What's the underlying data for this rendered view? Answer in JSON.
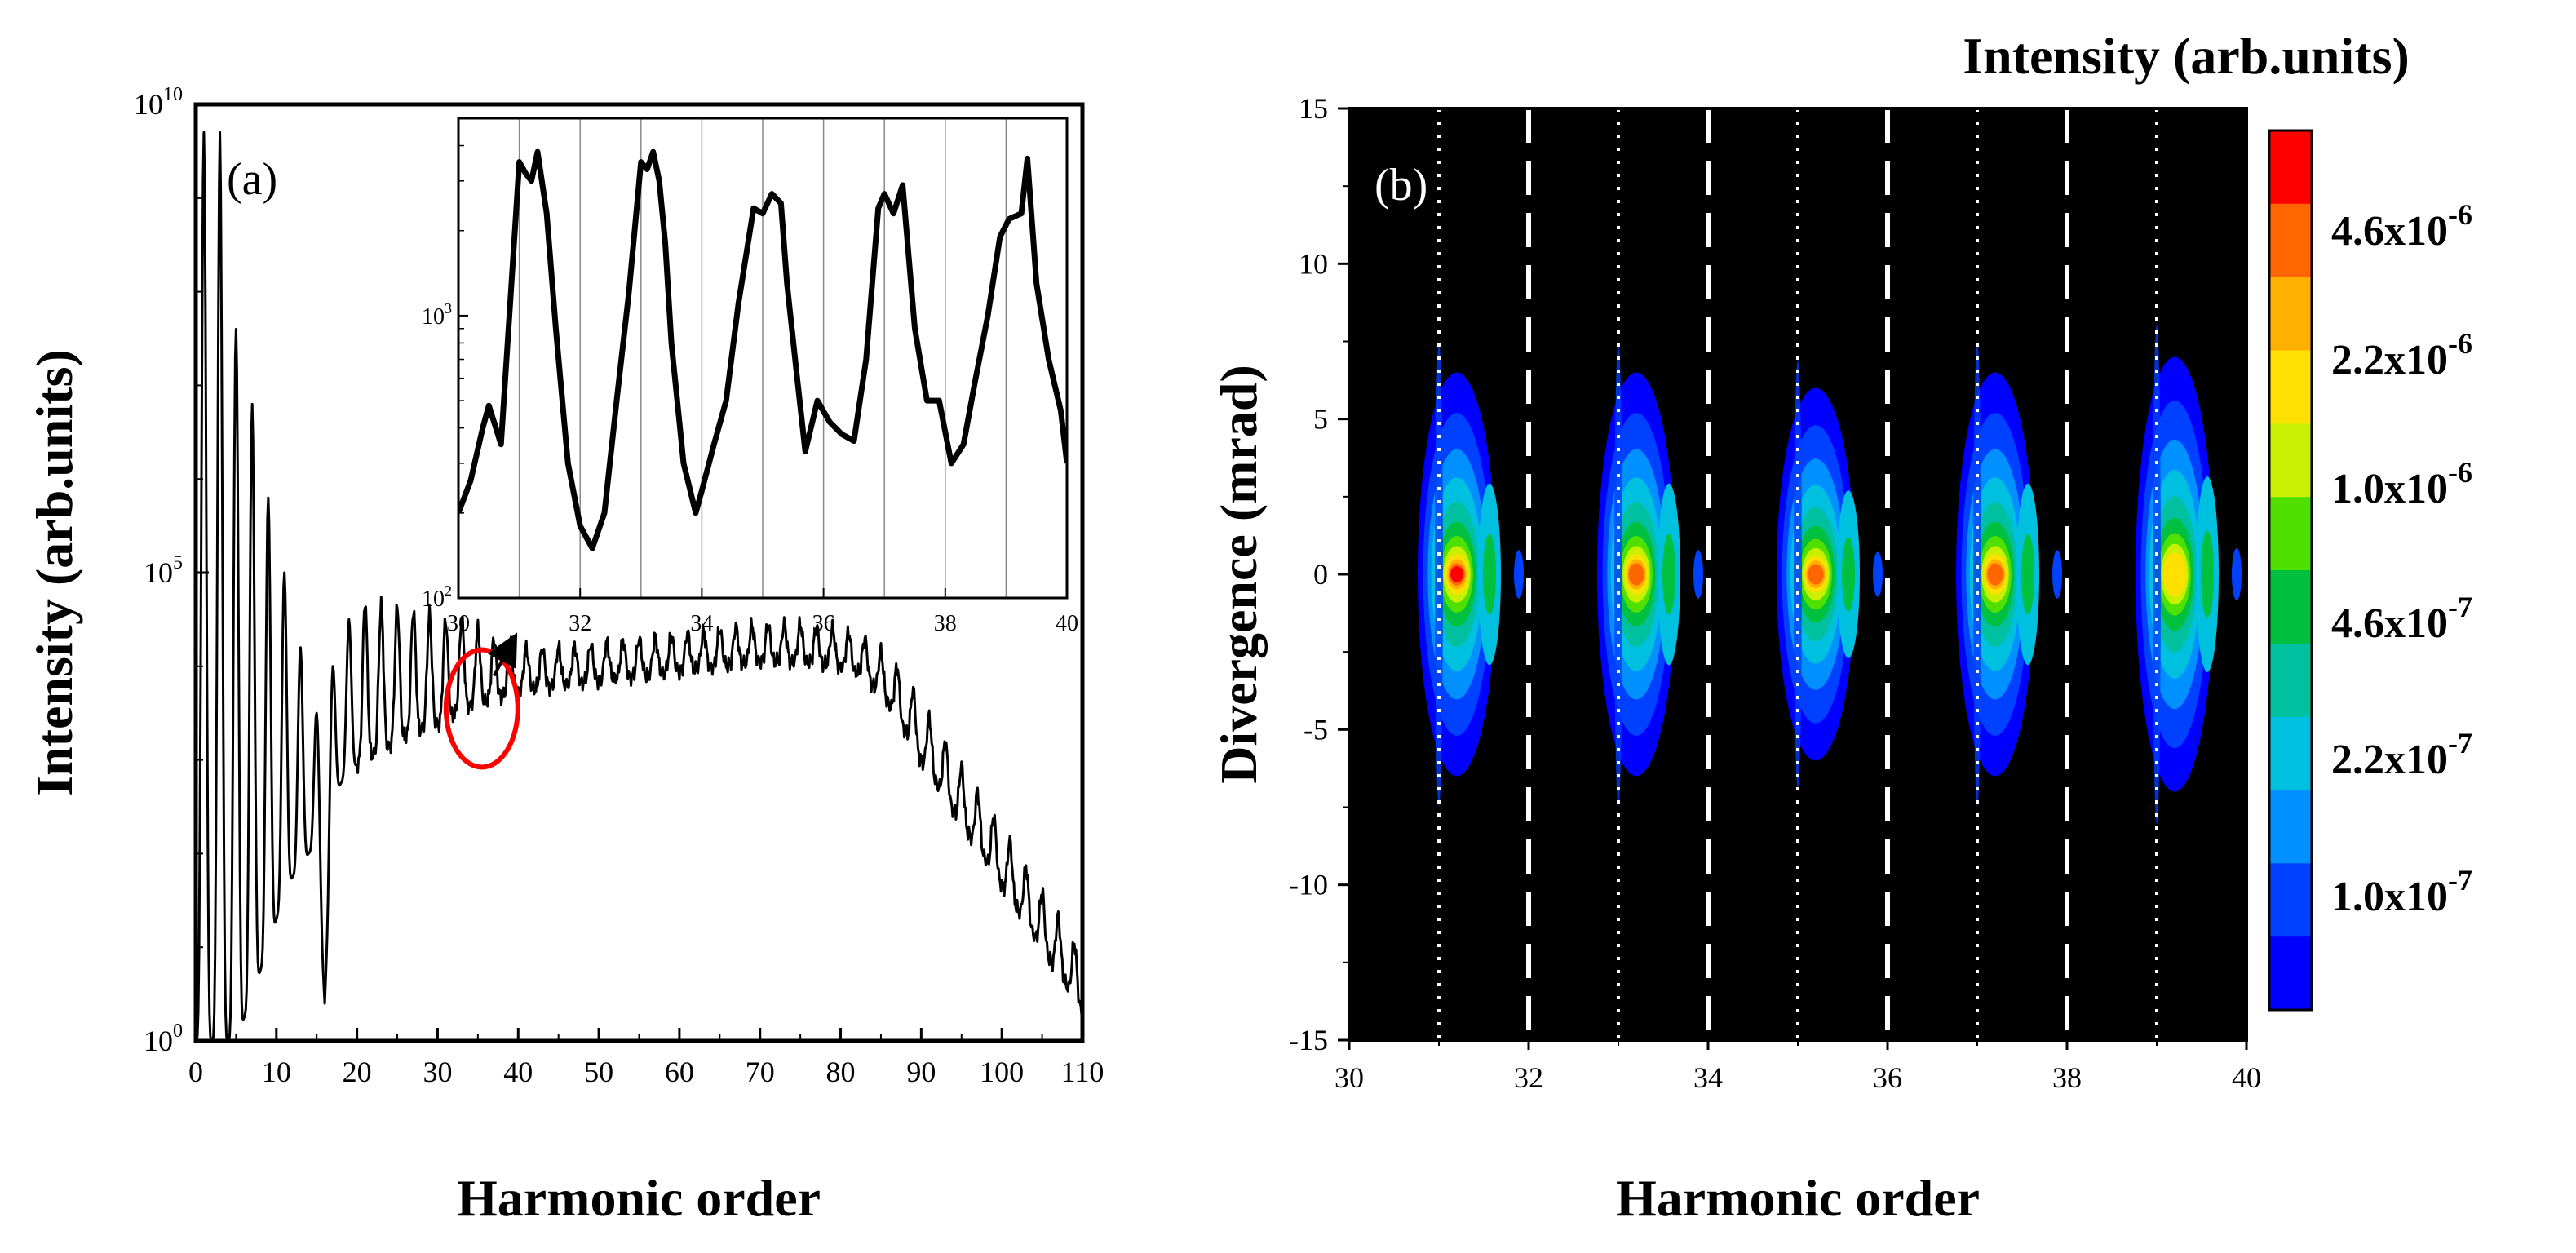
{
  "chart_data": [
    {
      "panel": "(a)",
      "type": "line",
      "xlabel": "Harmonic order",
      "ylabel": "Intensity (arb.units)",
      "xlim": [
        0,
        110
      ],
      "ylim": [
        1,
        10000000000
      ],
      "yscale": "log",
      "x_ticks": [
        "0",
        "10",
        "20",
        "30",
        "40",
        "50",
        "60",
        "70",
        "80",
        "90",
        "100",
        "110"
      ],
      "y_tick_base": "10",
      "y_tick_exponents": [
        "0",
        "5",
        "10"
      ],
      "series": [
        {
          "color": "#000000",
          "envelope": {
            "x": [
              1,
              3,
              5,
              7,
              9,
              11,
              13,
              15,
              16,
              17,
              19,
              21,
              23,
              25,
              27,
              29,
              31,
              33,
              35,
              37,
              39,
              41,
              45,
              50,
              55,
              60,
              65,
              70,
              75,
              80,
              83,
              86,
              88,
              90,
              93,
              96,
              99,
              102,
              105,
              108,
              110
            ],
            "peak_log10": [
              9.7,
              9.7,
              7.6,
              6.8,
              5.8,
              5.0,
              4.2,
              3.5,
              3.2,
              4.0,
              4.5,
              4.7,
              4.65,
              4.65,
              4.6,
              4.55,
              4.5,
              4.5,
              4.4,
              4.3,
              4.25,
              4.2,
              4.2,
              4.25,
              4.3,
              4.35,
              4.4,
              4.45,
              4.45,
              4.4,
              4.3,
              4.1,
              3.9,
              3.6,
              3.2,
              2.8,
              2.4,
              2.0,
              1.6,
              1.2,
              0.9
            ],
            "valley_log10": [
              0,
              0,
              0,
              0.5,
              1.0,
              1.6,
              1.9,
              2.1,
              0.4,
              2.6,
              2.9,
              3.0,
              3.1,
              3.2,
              3.3,
              3.35,
              3.4,
              3.55,
              3.6,
              3.65,
              3.7,
              3.75,
              3.8,
              3.85,
              3.9,
              3.95,
              4.0,
              4.05,
              4.05,
              4.0,
              3.9,
              3.6,
              3.3,
              3.0,
              2.6,
              2.2,
              1.8,
              1.4,
              1.0,
              0.6,
              0.3
            ]
          }
        }
      ],
      "annotations": [
        {
          "type": "ellipse",
          "color": "#ff0000",
          "center_x": 35.5,
          "center_log10y": 3.55
        },
        {
          "type": "arrow",
          "color": "#000000",
          "from": [
            37,
            3.9
          ],
          "to": [
            39.5,
            4.3
          ]
        }
      ],
      "inset": {
        "type": "line",
        "xlim": [
          30,
          40
        ],
        "ylim": [
          100,
          5000
        ],
        "yscale": "log",
        "x_ticks": [
          "30",
          "32",
          "34",
          "36",
          "38",
          "40"
        ],
        "y_tick_base": "10",
        "y_tick_exponents": [
          "2",
          "3"
        ],
        "vertical_gridlines": [
          31,
          32,
          33,
          34,
          35,
          36,
          37,
          38,
          39,
          40
        ],
        "series": [
          {
            "color": "#000000",
            "x": [
              30.0,
              30.2,
              30.4,
              30.5,
              30.7,
              30.85,
              31.0,
              31.1,
              31.2,
              31.3,
              31.45,
              31.6,
              31.8,
              32.0,
              32.2,
              32.4,
              32.6,
              32.8,
              33.0,
              33.1,
              33.2,
              33.3,
              33.4,
              33.5,
              33.7,
              33.9,
              34.0,
              34.2,
              34.4,
              34.6,
              34.85,
              35.0,
              35.15,
              35.3,
              35.4,
              35.55,
              35.7,
              35.9,
              36.1,
              36.3,
              36.5,
              36.7,
              36.9,
              37.0,
              37.15,
              37.3,
              37.5,
              37.7,
              37.9,
              38.1,
              38.3,
              38.5,
              38.7,
              38.9,
              39.05,
              39.25,
              39.35,
              39.5,
              39.7,
              39.9,
              40.0
            ],
            "y": [
              200,
              260,
              400,
              480,
              350,
              1100,
              3500,
              3200,
              3000,
              3800,
              2300,
              900,
              300,
              180,
              150,
              200,
              500,
              1200,
              3500,
              3300,
              3800,
              3000,
              1800,
              800,
              300,
              200,
              240,
              350,
              500,
              1100,
              2400,
              2300,
              2700,
              2500,
              1300,
              650,
              330,
              500,
              420,
              380,
              360,
              700,
              2400,
              2700,
              2300,
              2900,
              900,
              500,
              500,
              300,
              350,
              600,
              1000,
              1900,
              2200,
              2300,
              3600,
              1300,
              700,
              460,
              300
            ]
          }
        ]
      }
    },
    {
      "panel": "(b)",
      "type": "heatmap",
      "xlabel": "Harmonic order",
      "ylabel": "Divergence (mrad)",
      "xlim": [
        30,
        40
      ],
      "ylim": [
        -15,
        15
      ],
      "x_ticks": [
        "30",
        "32",
        "34",
        "36",
        "38",
        "40"
      ],
      "y_ticks": [
        "15",
        "10",
        "5",
        "0",
        "-5",
        "-10",
        "-15"
      ],
      "dotted_lines_x": [
        31,
        33,
        35,
        37,
        39
      ],
      "dashed_lines_x": [
        32,
        34,
        36,
        38
      ],
      "blobs": [
        {
          "harmonic": 31,
          "half_width_mrad": 6.5,
          "peak": 4.6e-06
        },
        {
          "harmonic": 33,
          "half_width_mrad": 6.5,
          "peak": 3.6e-06
        },
        {
          "harmonic": 35,
          "half_width_mrad": 6.0,
          "peak": 3.2e-06
        },
        {
          "harmonic": 37,
          "half_width_mrad": 6.5,
          "peak": 2.8e-06
        },
        {
          "harmonic": 39,
          "half_width_mrad": 7.0,
          "peak": 1.8e-06
        }
      ],
      "colorbar": {
        "title": "Intensity (arb.units)",
        "scale": "log",
        "labels": [
          {
            "mantissa": "4.6x10",
            "exponent": "-6"
          },
          {
            "mantissa": "2.2x10",
            "exponent": "-6"
          },
          {
            "mantissa": "1.0x10",
            "exponent": "-6"
          },
          {
            "mantissa": "4.6x10",
            "exponent": "-7"
          },
          {
            "mantissa": "2.2x10",
            "exponent": "-7"
          },
          {
            "mantissa": "1.0x10",
            "exponent": "-7"
          }
        ],
        "colors": [
          "#ff0000",
          "#ff6600",
          "#ffb000",
          "#ffe000",
          "#c8f000",
          "#50e000",
          "#00c040",
          "#00c0a0",
          "#00c0e0",
          "#0090ff",
          "#0040ff",
          "#0000ff"
        ]
      }
    }
  ]
}
